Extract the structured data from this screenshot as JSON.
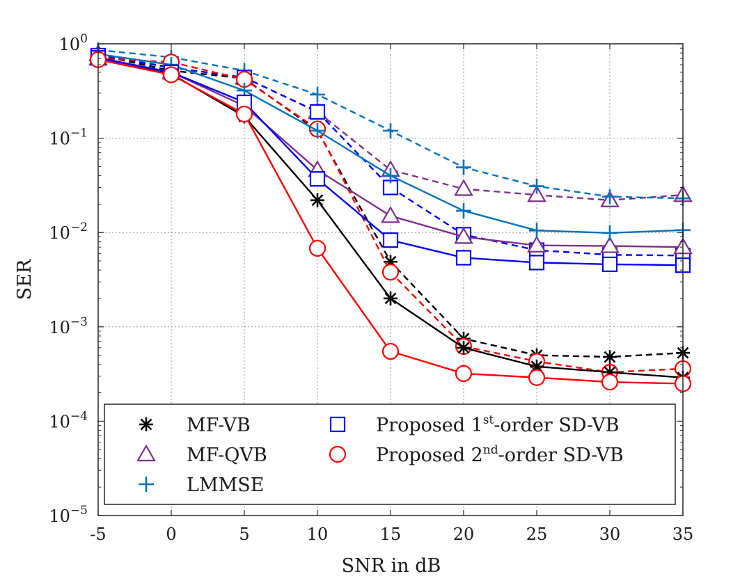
{
  "chart_data": {
    "type": "line",
    "xlabel": "SNR in dB",
    "ylabel": "SER",
    "xlim": [
      -5,
      35
    ],
    "ylim": [
      1e-05,
      1
    ],
    "yscale": "log",
    "grid": true,
    "x": [
      -5,
      0,
      5,
      10,
      15,
      20,
      25,
      30,
      35
    ],
    "xtick_labels": [
      "-5",
      "0",
      "5",
      "10",
      "15",
      "20",
      "25",
      "30",
      "35"
    ],
    "ytick_labels": [
      {
        "base": "10",
        "exp": "0"
      },
      {
        "base": "10",
        "exp": "−1"
      },
      {
        "base": "10",
        "exp": "−2"
      },
      {
        "base": "10",
        "exp": "−3"
      },
      {
        "base": "10",
        "exp": "−4"
      },
      {
        "base": "10",
        "exp": "−5"
      }
    ],
    "legend_position": "bottom",
    "legend": [
      {
        "label": "MF-VB",
        "marker": "asterisk",
        "color": "#000000"
      },
      {
        "label": "MF-QVB",
        "marker": "triangle",
        "color": "#7E2F8E"
      },
      {
        "label": "LMMSE",
        "marker": "plus",
        "color": "#0072BD"
      },
      {
        "label_pre": "Proposed 1",
        "label_sup": "st",
        "label_post": "-order SD-VB",
        "marker": "square",
        "color": "#0000FF"
      },
      {
        "label_pre": "Proposed 2",
        "label_sup": "nd",
        "label_post": "-order SD-VB",
        "marker": "circle",
        "color": "#FF0000"
      }
    ],
    "series": [
      {
        "name": "MF-VB (solid)",
        "style": "solid",
        "marker": "asterisk",
        "color": "#000000",
        "values": [
          0.72,
          0.48,
          0.17,
          0.022,
          0.002,
          0.0006,
          0.00038,
          0.00033,
          0.00029
        ]
      },
      {
        "name": "MF-VB (dashed)",
        "style": "dashed",
        "marker": "asterisk",
        "color": "#000000",
        "values": [
          0.76,
          0.52,
          0.43,
          0.12,
          0.0049,
          0.00075,
          0.0005,
          0.00048,
          0.00053
        ]
      },
      {
        "name": "MF-QVB (solid)",
        "style": "solid",
        "marker": "triangle",
        "color": "#7E2F8E",
        "values": [
          0.7,
          0.5,
          0.22,
          0.046,
          0.015,
          0.009,
          0.0073,
          0.0072,
          0.007
        ]
      },
      {
        "name": "MF-QVB (dashed)",
        "style": "dashed",
        "marker": "triangle",
        "color": "#7E2F8E",
        "values": [
          0.78,
          0.56,
          0.44,
          0.19,
          0.046,
          0.029,
          0.025,
          0.022,
          0.025
        ]
      },
      {
        "name": "LMMSE (solid)",
        "style": "solid",
        "marker": "plus",
        "color": "#0072BD",
        "values": [
          0.78,
          0.6,
          0.32,
          0.12,
          0.04,
          0.017,
          0.0105,
          0.0099,
          0.0106
        ]
      },
      {
        "name": "LMMSE (dashed)",
        "style": "dashed",
        "marker": "plus",
        "color": "#0072BD",
        "values": [
          0.86,
          0.72,
          0.52,
          0.29,
          0.12,
          0.049,
          0.031,
          0.024,
          0.023
        ]
      },
      {
        "name": "Proposed 1st-order SD-VB (solid)",
        "style": "solid",
        "marker": "square",
        "color": "#0000FF",
        "values": [
          0.71,
          0.5,
          0.24,
          0.037,
          0.0083,
          0.0054,
          0.0048,
          0.0046,
          0.0045
        ]
      },
      {
        "name": "Proposed 1st-order SD-VB (dashed)",
        "style": "dashed",
        "marker": "square",
        "color": "#0000FF",
        "values": [
          0.75,
          0.56,
          0.44,
          0.19,
          0.03,
          0.0095,
          0.0065,
          0.0058,
          0.0057
        ]
      },
      {
        "name": "Proposed 2nd-order SD-VB (solid)",
        "style": "solid",
        "marker": "circle",
        "color": "#FF0000",
        "values": [
          0.68,
          0.47,
          0.18,
          0.0068,
          0.00055,
          0.00032,
          0.00029,
          0.00026,
          0.00025
        ]
      },
      {
        "name": "Proposed 2nd-order SD-VB (dashed)",
        "style": "dashed",
        "marker": "circle",
        "color": "#FF0000",
        "values": [
          0.7,
          0.64,
          0.42,
          0.125,
          0.0038,
          0.00062,
          0.00043,
          0.00033,
          0.00036
        ]
      }
    ]
  }
}
